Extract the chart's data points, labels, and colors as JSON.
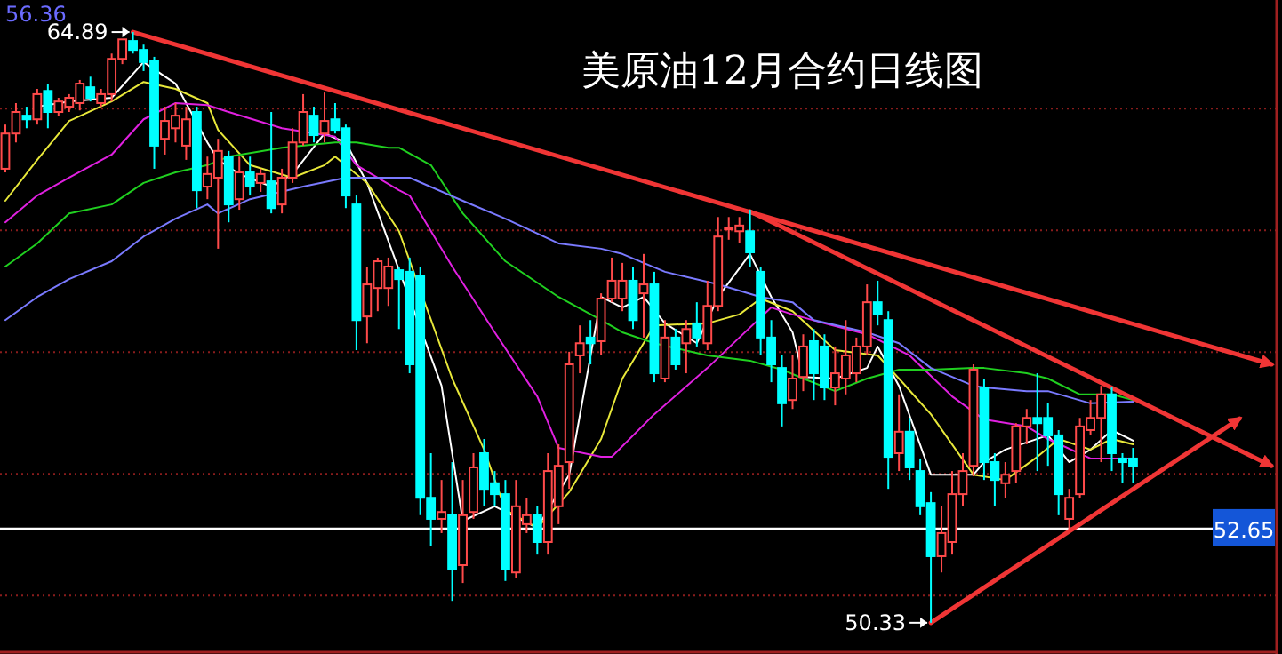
{
  "chart_data": {
    "type": "candlestick",
    "title": "美原油12月合约日线图",
    "categories": [
      null,
      null,
      null,
      null,
      null,
      null,
      null,
      null,
      null,
      null,
      null,
      null,
      null,
      null,
      null,
      null,
      null,
      null,
      null,
      null,
      null,
      null,
      null,
      null,
      null,
      null,
      null,
      null,
      null,
      null,
      null,
      null,
      null,
      null,
      null,
      null,
      null,
      null,
      null,
      null,
      null,
      null,
      null,
      null,
      null,
      null,
      null,
      null,
      null,
      null,
      null,
      null,
      null,
      null,
      null,
      null,
      null,
      null,
      null,
      null,
      null,
      null,
      null,
      null,
      null,
      null,
      null,
      null,
      null,
      null,
      null,
      null,
      null,
      null,
      null,
      null,
      null,
      null,
      null,
      null,
      null,
      null,
      null,
      null,
      null,
      null,
      null,
      null,
      null,
      null,
      null,
      null,
      null,
      null,
      null,
      null,
      null,
      null,
      null,
      null,
      null,
      null,
      null,
      null,
      null,
      null,
      null,
      null,
      null,
      null,
      null,
      null,
      null,
      null,
      null,
      null,
      null,
      null,
      null,
      null
    ],
    "ohlc": [
      [
        61.52,
        62.61,
        61.43,
        62.39
      ],
      [
        62.39,
        63.14,
        62.17,
        62.92
      ],
      [
        62.83,
        63.05,
        62.52,
        62.74
      ],
      [
        62.74,
        63.49,
        62.61,
        63.36
      ],
      [
        63.44,
        63.62,
        62.52,
        62.92
      ],
      [
        62.92,
        63.27,
        62.83,
        63.18
      ],
      [
        63.05,
        63.36,
        62.92,
        63.27
      ],
      [
        63.14,
        63.71,
        62.96,
        63.62
      ],
      [
        63.53,
        63.79,
        63.18,
        63.27
      ],
      [
        63.14,
        63.49,
        63.05,
        63.36
      ],
      [
        63.36,
        64.36,
        63.18,
        64.23
      ],
      [
        64.23,
        64.71,
        64.1,
        64.71
      ],
      [
        64.67,
        64.89,
        64.36,
        64.45
      ],
      [
        64.45,
        64.58,
        63.93,
        64.15
      ],
      [
        64.19,
        64.28,
        61.52,
        62.09
      ],
      [
        62.26,
        63.05,
        61.87,
        62.7
      ],
      [
        62.52,
        63.14,
        62.17,
        62.83
      ],
      [
        62.09,
        63.05,
        61.74,
        62.74
      ],
      [
        62.92,
        63.05,
        60.55,
        60.99
      ],
      [
        61.08,
        61.82,
        60.77,
        61.39
      ],
      [
        61.3,
        62.26,
        59.55,
        61.96
      ],
      [
        61.82,
        61.96,
        60.2,
        60.64
      ],
      [
        60.77,
        61.82,
        60.51,
        61.43
      ],
      [
        61.43,
        61.82,
        60.86,
        61.08
      ],
      [
        61.17,
        61.52,
        60.95,
        61.39
      ],
      [
        61.21,
        62.92,
        60.42,
        60.55
      ],
      [
        60.64,
        61.52,
        60.42,
        61.3
      ],
      [
        61.3,
        62.52,
        61.17,
        62.17
      ],
      [
        62.17,
        63.36,
        62.09,
        62.92
      ],
      [
        62.83,
        63.05,
        62.17,
        62.35
      ],
      [
        62.39,
        63.4,
        62.17,
        62.7
      ],
      [
        62.74,
        63.14,
        62.39,
        62.48
      ],
      [
        62.52,
        62.61,
        60.55,
        60.86
      ],
      [
        60.64,
        60.86,
        57.05,
        57.79
      ],
      [
        57.88,
        59.11,
        57.22,
        58.67
      ],
      [
        58.58,
        59.33,
        58.01,
        59.24
      ],
      [
        58.58,
        59.33,
        58.14,
        59.11
      ],
      [
        59.02,
        59.11,
        57.57,
        58.8
      ],
      [
        58.98,
        59.33,
        56.48,
        56.7
      ],
      [
        58.89,
        59.11,
        52.98,
        53.41
      ],
      [
        53.41,
        54.51,
        52.23,
        52.89
      ],
      [
        52.89,
        53.85,
        52.54,
        53.06
      ],
      [
        52.98,
        54.29,
        50.87,
        51.66
      ],
      [
        51.75,
        53.85,
        51.31,
        52.98
      ],
      [
        53.06,
        54.51,
        52.89,
        54.16
      ],
      [
        54.51,
        54.86,
        53.2,
        53.63
      ],
      [
        53.77,
        54.07,
        53.2,
        53.5
      ],
      [
        53.5,
        53.85,
        51.36,
        51.66
      ],
      [
        51.57,
        53.85,
        51.44,
        53.2
      ],
      [
        52.76,
        53.41,
        52.54,
        52.98
      ],
      [
        52.98,
        53.2,
        52.01,
        52.32
      ],
      [
        52.32,
        54.51,
        52.01,
        54.07
      ],
      [
        53.2,
        54.73,
        52.76,
        54.2
      ],
      [
        54.29,
        57.01,
        53.63,
        56.7
      ],
      [
        56.92,
        57.66,
        56.48,
        57.22
      ],
      [
        57.36,
        57.79,
        56.7,
        57.22
      ],
      [
        57.27,
        58.45,
        56.92,
        58.32
      ],
      [
        58.32,
        59.33,
        58.23,
        58.76
      ],
      [
        58.32,
        59.2,
        58.01,
        58.76
      ],
      [
        58.76,
        59.11,
        57.57,
        57.79
      ],
      [
        58.45,
        59.42,
        57.36,
        58.67
      ],
      [
        58.67,
        58.98,
        56.26,
        56.48
      ],
      [
        56.35,
        57.79,
        56.26,
        57.36
      ],
      [
        57.36,
        57.57,
        56.57,
        56.7
      ],
      [
        57.22,
        57.79,
        56.48,
        57.57
      ],
      [
        57.71,
        58.23,
        57.14,
        57.36
      ],
      [
        57.22,
        58.76,
        57.05,
        58.14
      ],
      [
        58.14,
        60.33,
        58.01,
        59.85
      ],
      [
        60.07,
        60.33,
        59.77,
        60.07
      ],
      [
        59.98,
        60.33,
        59.68,
        60.12
      ],
      [
        59.98,
        60.51,
        59.11,
        59.46
      ],
      [
        58.98,
        59.11,
        56.92,
        57.36
      ],
      [
        57.36,
        57.79,
        56.26,
        56.7
      ],
      [
        56.61,
        56.92,
        55.17,
        55.74
      ],
      [
        55.82,
        56.92,
        55.6,
        56.35
      ],
      [
        56.39,
        57.44,
        56.04,
        57.14
      ],
      [
        57.27,
        57.57,
        55.82,
        56.48
      ],
      [
        57.14,
        57.44,
        55.82,
        56.13
      ],
      [
        56.13,
        57.14,
        55.69,
        56.48
      ],
      [
        56.35,
        57.79,
        55.96,
        56.92
      ],
      [
        56.48,
        57.36,
        56.26,
        57.14
      ],
      [
        57.14,
        58.67,
        56.92,
        58.23
      ],
      [
        58.23,
        58.76,
        57.66,
        57.93
      ],
      [
        57.79,
        58.01,
        53.63,
        54.42
      ],
      [
        54.51,
        55.96,
        54.07,
        55.04
      ],
      [
        55.04,
        55.38,
        53.85,
        54.16
      ],
      [
        54.07,
        54.38,
        52.98,
        53.2
      ],
      [
        53.28,
        53.55,
        50.33,
        51.97
      ],
      [
        51.97,
        53.2,
        51.57,
        52.54
      ],
      [
        52.32,
        54.07,
        52.01,
        53.5
      ],
      [
        53.5,
        54.51,
        53.2,
        54.07
      ],
      [
        54.2,
        56.7,
        53.94,
        56.57
      ],
      [
        56.13,
        56.35,
        53.85,
        54.29
      ],
      [
        54.29,
        54.51,
        53.2,
        53.85
      ],
      [
        53.77,
        54.29,
        53.41,
        53.98
      ],
      [
        54.07,
        55.25,
        53.77,
        55.17
      ],
      [
        55.17,
        55.6,
        54.73,
        55.38
      ],
      [
        55.38,
        56.48,
        54.07,
        55.25
      ],
      [
        55.38,
        55.74,
        54.2,
        54.95
      ],
      [
        54.95,
        55.08,
        52.98,
        53.5
      ],
      [
        52.89,
        53.63,
        52.63,
        53.41
      ],
      [
        53.5,
        55.38,
        53.41,
        55.17
      ],
      [
        55.08,
        55.82,
        54.95,
        55.38
      ],
      [
        55.38,
        56.17,
        54.29,
        55.96
      ],
      [
        55.96,
        56.13,
        54.07,
        54.51
      ],
      [
        54.38,
        54.51,
        53.77,
        54.29
      ],
      [
        54.38,
        54.64,
        53.77,
        54.2
      ],
      null,
      null,
      null,
      null,
      null,
      null,
      null,
      null,
      null,
      null,
      null,
      null,
      null
    ],
    "series": [
      {
        "type": "line",
        "color": "#ffffff",
        "values": [
          null,
          null,
          null,
          63.05,
          null,
          null,
          63.18,
          null,
          null,
          null,
          63.27,
          null,
          null,
          64.15,
          null,
          null,
          63.62,
          null,
          null,
          62.17,
          61.74,
          null,
          61.39,
          null,
          null,
          61.08,
          null,
          61.39,
          null,
          null,
          62.39,
          null,
          62.17,
          null,
          61.17,
          null,
          null,
          null,
          null,
          null,
          null,
          56.17,
          null,
          52.84,
          null,
          null,
          53.2,
          null,
          null,
          null,
          52.67,
          null,
          null,
          53.98,
          null,
          null,
          58.36,
          null,
          58.1,
          null,
          58.36,
          null,
          57.71,
          null,
          null,
          57.22,
          null,
          58.36,
          null,
          null,
          59.42,
          null,
          58.36,
          null,
          57.49,
          56.39,
          null,
          null,
          56.35,
          null,
          null,
          56.61,
          57.14,
          null,
          56.17,
          null,
          null,
          53.98,
          null,
          null,
          null,
          53.98,
          54.29,
          null,
          54.6,
          null,
          null,
          null,
          54.95,
          null,
          54.29,
          null,
          54.6,
          null,
          55.08,
          null,
          54.82,
          null,
          null,
          null,
          null,
          null,
          null,
          null,
          null,
          null,
          null,
          null,
          null,
          null
        ]
      },
      {
        "type": "line",
        "color": "#e8e83a",
        "values": [
          60.73,
          null,
          null,
          61.74,
          null,
          null,
          62.7,
          null,
          null,
          null,
          63.18,
          null,
          null,
          63.66,
          null,
          null,
          63.49,
          null,
          null,
          63.14,
          62.48,
          null,
          null,
          61.61,
          null,
          null,
          null,
          61.3,
          null,
          null,
          61.61,
          61.82,
          null,
          null,
          61.17,
          null,
          null,
          59.98,
          null,
          null,
          null,
          null,
          56.35,
          null,
          null,
          54.6,
          null,
          53.11,
          null,
          null,
          52.67,
          null,
          null,
          53.55,
          null,
          null,
          54.86,
          null,
          56.35,
          null,
          null,
          57.66,
          null,
          null,
          null,
          null,
          57.71,
          null,
          null,
          57.93,
          null,
          58.32,
          null,
          null,
          58.01,
          null,
          null,
          null,
          57.05,
          null,
          null,
          null,
          56.92,
          null,
          56.35,
          null,
          null,
          55.47,
          null,
          null,
          null,
          53.98,
          null,
          null,
          53.85,
          null,
          null,
          54.42,
          null,
          54.86,
          null,
          null,
          54.6,
          null,
          54.86,
          null,
          54.73,
          null,
          null,
          null,
          null,
          null,
          null,
          null,
          null,
          null,
          null,
          null,
          null,
          null
        ]
      },
      {
        "type": "line",
        "color": "#e020e0",
        "values": [
          60.2,
          null,
          null,
          60.86,
          null,
          null,
          61.3,
          null,
          null,
          null,
          61.87,
          null,
          null,
          62.74,
          null,
          null,
          63.14,
          null,
          null,
          63.09,
          null,
          62.92,
          null,
          null,
          null,
          null,
          62.52,
          null,
          null,
          null,
          null,
          62.31,
          null,
          61.61,
          null,
          null,
          null,
          60.99,
          60.86,
          null,
          null,
          null,
          59.11,
          null,
          null,
          null,
          57.49,
          null,
          null,
          null,
          55.91,
          null,
          54.64,
          null,
          null,
          null,
          54.42,
          54.42,
          null,
          null,
          null,
          55.47,
          null,
          null,
          null,
          null,
          56.61,
          null,
          null,
          57.36,
          null,
          null,
          58.1,
          null,
          57.93,
          null,
          null,
          57.71,
          null,
          null,
          null,
          57.44,
          null,
          null,
          null,
          56.92,
          null,
          null,
          null,
          55.91,
          null,
          null,
          55.34,
          null,
          null,
          null,
          55.17,
          null,
          54.86,
          null,
          null,
          null,
          54.38,
          null,
          54.38,
          null,
          54.38,
          null,
          null,
          null,
          null,
          null,
          null,
          null,
          null,
          null,
          null,
          null,
          null,
          null
        ]
      },
      {
        "type": "line",
        "color": "#20d020",
        "values": [
          59.11,
          null,
          null,
          59.68,
          null,
          null,
          60.42,
          null,
          null,
          null,
          60.64,
          null,
          null,
          61.17,
          null,
          null,
          61.43,
          null,
          null,
          61.61,
          null,
          61.82,
          null,
          null,
          null,
          null,
          62.04,
          null,
          null,
          null,
          null,
          62.17,
          null,
          62.17,
          null,
          null,
          62.04,
          62.04,
          null,
          null,
          61.61,
          null,
          null,
          60.42,
          null,
          null,
          null,
          59.24,
          null,
          null,
          null,
          null,
          58.36,
          null,
          null,
          null,
          57.79,
          null,
          57.49,
          null,
          null,
          57.22,
          null,
          null,
          null,
          null,
          56.92,
          null,
          null,
          null,
          56.79,
          null,
          null,
          56.57,
          null,
          56.35,
          null,
          null,
          56.04,
          null,
          null,
          56.35,
          null,
          null,
          56.57,
          null,
          null,
          56.57,
          null,
          null,
          null,
          56.61,
          56.61,
          null,
          null,
          null,
          56.48,
          null,
          56.35,
          null,
          null,
          55.96,
          null,
          null,
          55.96,
          null,
          55.82,
          null,
          null,
          null,
          null,
          null,
          null,
          null,
          null,
          null,
          null,
          null,
          null,
          null
        ]
      },
      {
        "type": "line",
        "color": "#7a7aff",
        "values": [
          57.79,
          null,
          null,
          58.36,
          null,
          null,
          58.8,
          null,
          null,
          null,
          59.24,
          null,
          null,
          59.85,
          null,
          null,
          60.29,
          null,
          null,
          60.64,
          60.42,
          null,
          null,
          60.77,
          null,
          null,
          null,
          null,
          61.08,
          null,
          null,
          null,
          61.3,
          null,
          null,
          null,
          61.3,
          null,
          61.3,
          null,
          null,
          null,
          null,
          60.73,
          null,
          null,
          null,
          60.29,
          null,
          null,
          null,
          null,
          59.68,
          null,
          null,
          null,
          59.55,
          null,
          59.42,
          null,
          null,
          null,
          58.98,
          null,
          null,
          null,
          null,
          58.67,
          null,
          null,
          null,
          58.36,
          null,
          null,
          58.23,
          null,
          57.79,
          null,
          null,
          null,
          null,
          57.49,
          null,
          null,
          57.22,
          null,
          null,
          56.61,
          null,
          null,
          null,
          56.17,
          56.13,
          null,
          null,
          null,
          56.04,
          null,
          56.04,
          null,
          null,
          null,
          55.74,
          null,
          null,
          null,
          55.78,
          null,
          null,
          null,
          null,
          null,
          null,
          null,
          null,
          null,
          null,
          null,
          null,
          null
        ]
      },
      {
        "type": "line",
        "color": "#f03535",
        "values": [
          null,
          null,
          null,
          null,
          null,
          null,
          null,
          null,
          null,
          null,
          null,
          null,
          64.89,
          null,
          null,
          null,
          null,
          null,
          null,
          null,
          null,
          null,
          null,
          null,
          null,
          null,
          null,
          null,
          null,
          null,
          null,
          null,
          null,
          null,
          null,
          null,
          null,
          null,
          null,
          null,
          null,
          null,
          null,
          null,
          null,
          null,
          null,
          null,
          null,
          null,
          null,
          null,
          null,
          null,
          null,
          null,
          null,
          null,
          null,
          null,
          null,
          null,
          null,
          null,
          null,
          null,
          null,
          null,
          null,
          null,
          null,
          null,
          null,
          null,
          null,
          null,
          null,
          null,
          null,
          null,
          null,
          null,
          null,
          null,
          null,
          null,
          null,
          null,
          null,
          null,
          null,
          null,
          null,
          null,
          null,
          null,
          null,
          null,
          null,
          null,
          null,
          null,
          null,
          null,
          null,
          null,
          null,
          null,
          null,
          null,
          null,
          null,
          null,
          null,
          null,
          null,
          null,
          null,
          null,
          56.7
        ]
      },
      {
        "type": "line",
        "color": "#f03535",
        "values": [
          null,
          null,
          null,
          null,
          null,
          null,
          null,
          null,
          null,
          null,
          null,
          null,
          null,
          null,
          null,
          null,
          null,
          null,
          null,
          null,
          null,
          null,
          null,
          null,
          null,
          null,
          null,
          null,
          null,
          null,
          null,
          null,
          null,
          null,
          null,
          null,
          null,
          null,
          null,
          null,
          null,
          null,
          null,
          null,
          null,
          null,
          null,
          null,
          null,
          null,
          null,
          null,
          null,
          null,
          null,
          null,
          null,
          null,
          null,
          null,
          null,
          null,
          null,
          null,
          null,
          null,
          null,
          null,
          null,
          null,
          60.47,
          null,
          null,
          null,
          null,
          null,
          null,
          null,
          null,
          null,
          null,
          null,
          null,
          null,
          null,
          null,
          null,
          null,
          null,
          null,
          null,
          null,
          null,
          null,
          null,
          null,
          null,
          null,
          null,
          null,
          null,
          null,
          null,
          null,
          null,
          null,
          null,
          null,
          null,
          null,
          null,
          null,
          null,
          null,
          null,
          null,
          null,
          null,
          null,
          54.2
        ]
      },
      {
        "type": "line",
        "color": "#f03535",
        "values": [
          null,
          null,
          null,
          null,
          null,
          null,
          null,
          null,
          null,
          null,
          null,
          null,
          null,
          null,
          null,
          null,
          null,
          null,
          null,
          null,
          null,
          null,
          null,
          null,
          null,
          null,
          null,
          null,
          null,
          null,
          null,
          null,
          null,
          null,
          null,
          null,
          null,
          null,
          null,
          null,
          null,
          null,
          null,
          null,
          null,
          null,
          null,
          null,
          null,
          null,
          null,
          null,
          null,
          null,
          null,
          null,
          null,
          null,
          null,
          null,
          null,
          null,
          null,
          null,
          null,
          null,
          null,
          null,
          null,
          null,
          null,
          null,
          null,
          null,
          null,
          null,
          null,
          null,
          null,
          null,
          null,
          null,
          null,
          null,
          null,
          null,
          null,
          50.33,
          null,
          null,
          null,
          null,
          null,
          null,
          null,
          null,
          null,
          null,
          null,
          null,
          null,
          null,
          null,
          null,
          null,
          null,
          null,
          null,
          null,
          null,
          null,
          null,
          null,
          null,
          null,
          null,
          55.36,
          null,
          null,
          null
        ]
      }
    ],
    "ylim": [
      49.56,
      65.68
    ],
    "yticks": [
      {
        "value": 51,
        "label": null
      },
      {
        "value": 54,
        "label": null
      },
      {
        "value": 57,
        "label": null
      },
      {
        "value": 60,
        "label": null
      },
      {
        "value": 63,
        "label": null
      }
    ],
    "grid": "y",
    "ref_lines": [
      {
        "axis": "y",
        "value": 52.65,
        "label": "52.65",
        "color": "#ffffff"
      }
    ],
    "annotations": [
      "56.36",
      "64.89",
      "50.33"
    ]
  }
}
